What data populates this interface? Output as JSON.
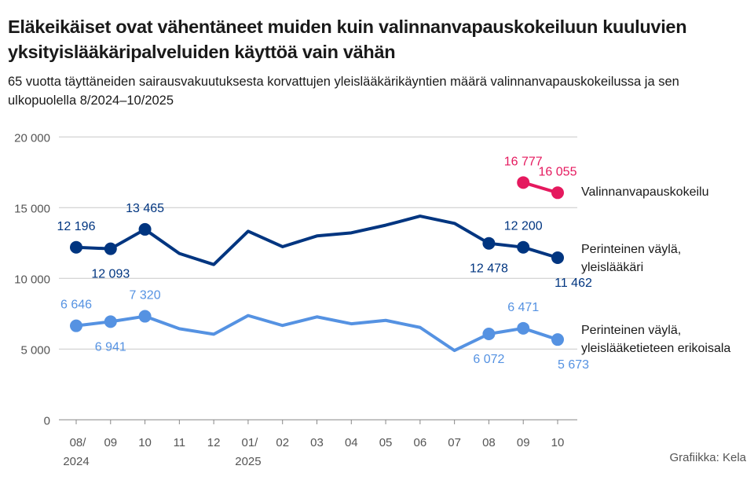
{
  "chart_data": {
    "type": "line",
    "title": "Eläkeikäiset ovat vähentäneet muiden kuin valinnanvapauskokeiluun kuuluvien yksityislääkäripalveluiden käyttöä vain vähän",
    "subtitle": "65 vuotta täyttäneiden sairausvakuutuksesta korvattujen yleislääkärikäyntien määrä valinnanvapauskokeilussa ja sen ulkopuolella 8/2024–10/2025",
    "credit": "Grafiikka: Kela",
    "categories": [
      "08/\n2024",
      "09",
      "10",
      "11",
      "12",
      "01/\n2025",
      "02",
      "03",
      "04",
      "05",
      "06",
      "07",
      "08",
      "09",
      "10"
    ],
    "ylim": [
      0,
      20000
    ],
    "yticks": [
      0,
      5000,
      10000,
      15000,
      20000
    ],
    "ytick_labels": [
      "0",
      "5 000",
      "10 000",
      "15 000",
      "20 000"
    ],
    "grid": true,
    "series": [
      {
        "name": "Valinnanvapauskokeilu",
        "color": "#e5195e",
        "values": [
          null,
          null,
          null,
          null,
          null,
          null,
          null,
          null,
          null,
          null,
          null,
          null,
          null,
          16777,
          16055
        ],
        "labels": {
          "13": "16 777",
          "14": "16 055"
        }
      },
      {
        "name": "Perinteinen väylä, yleislääkäri",
        "color": "#003580",
        "values": [
          12196,
          12093,
          13465,
          11760,
          10980,
          13330,
          12240,
          13000,
          13220,
          13760,
          14400,
          13890,
          12478,
          12200,
          11462
        ],
        "labels": {
          "0": "12 196",
          "1": "12 093",
          "2": "13 465",
          "12": "12 478",
          "13": "12 200",
          "14": "11 462"
        }
      },
      {
        "name": "Perinteinen väylä, yleislääketieteen erikoisala",
        "color": "#5592e2",
        "values": [
          6646,
          6941,
          7320,
          6440,
          6050,
          7370,
          6670,
          7280,
          6790,
          7030,
          6530,
          4900,
          6072,
          6471,
          5673
        ],
        "labels": {
          "0": "6 646",
          "1": "6 941",
          "2": "7 320",
          "12": "6 072",
          "13": "6 471",
          "14": "5 673"
        }
      }
    ]
  }
}
